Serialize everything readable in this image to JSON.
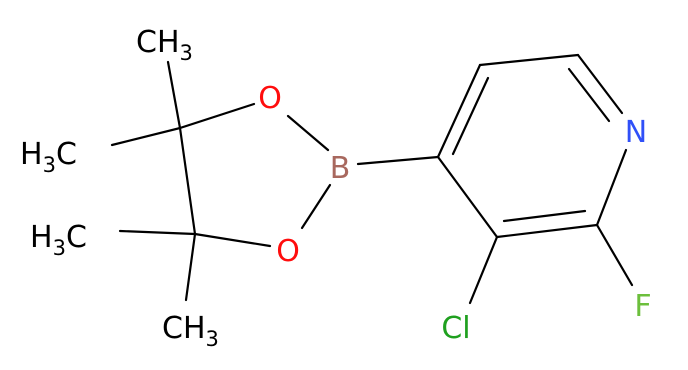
{
  "atoms": [
    {
      "parts": [
        "CH",
        "3"
      ]
    },
    {
      "parts": [
        "H",
        "3",
        "C"
      ]
    },
    {
      "parts": [
        "H",
        "3",
        "C"
      ]
    },
    {
      "parts": [
        "CH",
        "3"
      ]
    },
    {
      "parts": [
        "O"
      ]
    },
    {
      "parts": [
        "O"
      ]
    },
    {
      "parts": [
        "B"
      ]
    },
    {
      "parts": [
        "N"
      ]
    },
    {
      "parts": [
        "Cl"
      ]
    },
    {
      "parts": [
        "F"
      ]
    }
  ]
}
